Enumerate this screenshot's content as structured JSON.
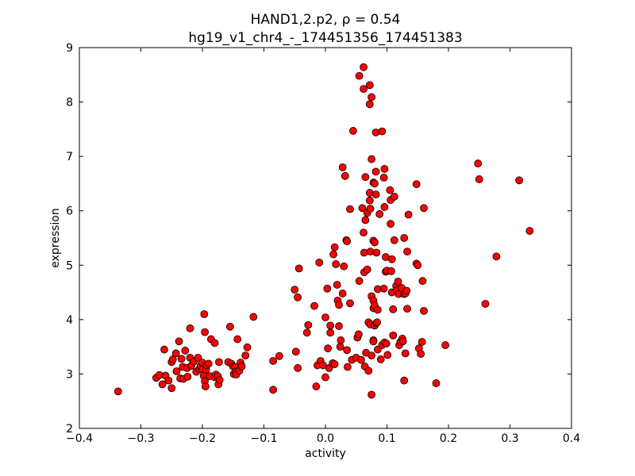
{
  "chart_data": {
    "type": "scatter",
    "title": "HAND1,2.p2, ρ = 0.54",
    "subtitle": "hg19_v1_chr4_-_174451356_174451383",
    "xlabel": "activity",
    "ylabel": "expression",
    "xlim": [
      -0.4,
      0.4
    ],
    "ylim": [
      2,
      9
    ],
    "xticks": [
      "−0.4",
      "−0.3",
      "−0.2",
      "−0.1",
      "0.0",
      "0.1",
      "0.2",
      "0.3",
      "0.4"
    ],
    "yticks": [
      "2",
      "3",
      "4",
      "5",
      "6",
      "7",
      "8",
      "9"
    ],
    "grid": false,
    "legend": "none",
    "marker_color": "#ff0000",
    "marker_edge_color": "#000000",
    "points": [
      [
        -0.337,
        2.68
      ],
      [
        -0.275,
        2.93
      ],
      [
        -0.27,
        2.98
      ],
      [
        -0.265,
        2.81
      ],
      [
        -0.262,
        3.45
      ],
      [
        -0.26,
        2.97
      ],
      [
        -0.255,
        2.88
      ],
      [
        -0.25,
        2.74
      ],
      [
        -0.25,
        3.22
      ],
      [
        -0.248,
        3.27
      ],
      [
        -0.243,
        3.38
      ],
      [
        -0.242,
        3.05
      ],
      [
        -0.238,
        3.6
      ],
      [
        -0.236,
        2.92
      ],
      [
        -0.234,
        3.28
      ],
      [
        -0.232,
        3.13
      ],
      [
        -0.231,
        2.91
      ],
      [
        -0.228,
        3.43
      ],
      [
        -0.225,
        3.11
      ],
      [
        -0.224,
        2.95
      ],
      [
        -0.22,
        3.84
      ],
      [
        -0.22,
        3.3
      ],
      [
        -0.218,
        3.15
      ],
      [
        -0.214,
        3.23
      ],
      [
        -0.21,
        3.04
      ],
      [
        -0.207,
        3.3
      ],
      [
        -0.205,
        3.09
      ],
      [
        -0.203,
        3.15
      ],
      [
        -0.2,
        3.21
      ],
      [
        -0.2,
        3.08
      ],
      [
        -0.198,
        2.97
      ],
      [
        -0.197,
        4.1
      ],
      [
        -0.196,
        3.77
      ],
      [
        -0.196,
        2.87
      ],
      [
        -0.195,
        2.77
      ],
      [
        -0.194,
        3.08
      ],
      [
        -0.193,
        3.16
      ],
      [
        -0.19,
        3.19
      ],
      [
        -0.188,
        2.96
      ],
      [
        -0.186,
        3.64
      ],
      [
        -0.18,
        3.57
      ],
      [
        -0.18,
        2.94
      ],
      [
        -0.178,
        2.99
      ],
      [
        -0.175,
        2.96
      ],
      [
        -0.174,
        2.81
      ],
      [
        -0.173,
        3.22
      ],
      [
        -0.172,
        2.89
      ],
      [
        -0.158,
        3.22
      ],
      [
        -0.155,
        3.87
      ],
      [
        -0.153,
        3.19
      ],
      [
        -0.15,
        3.14
      ],
      [
        -0.149,
        3.0
      ],
      [
        -0.147,
        3.13
      ],
      [
        -0.146,
        3.04
      ],
      [
        -0.145,
        2.99
      ],
      [
        -0.143,
        3.64
      ],
      [
        -0.14,
        3.06
      ],
      [
        -0.138,
        3.21
      ],
      [
        -0.136,
        3.14
      ],
      [
        -0.13,
        3.34
      ],
      [
        -0.127,
        3.49
      ],
      [
        -0.117,
        4.05
      ],
      [
        -0.085,
        3.24
      ],
      [
        -0.085,
        2.71
      ],
      [
        -0.075,
        3.33
      ],
      [
        -0.05,
        4.55
      ],
      [
        -0.048,
        3.41
      ],
      [
        -0.045,
        4.41
      ],
      [
        -0.045,
        3.11
      ],
      [
        -0.043,
        4.94
      ],
      [
        -0.03,
        3.76
      ],
      [
        -0.028,
        3.9
      ],
      [
        -0.018,
        4.25
      ],
      [
        -0.015,
        2.77
      ],
      [
        -0.013,
        3.16
      ],
      [
        -0.01,
        5.05
      ],
      [
        -0.008,
        3.24
      ],
      [
        -0.004,
        3.16
      ],
      [
        0.0,
        2.94
      ],
      [
        0.0,
        4.04
      ],
      [
        0.003,
        4.57
      ],
      [
        0.004,
        3.47
      ],
      [
        0.006,
        3.11
      ],
      [
        0.008,
        3.89
      ],
      [
        0.008,
        3.76
      ],
      [
        0.012,
        3.2
      ],
      [
        0.013,
        5.2
      ],
      [
        0.015,
        5.33
      ],
      [
        0.015,
        3.18
      ],
      [
        0.017,
        5.02
      ],
      [
        0.019,
        4.64
      ],
      [
        0.02,
        4.35
      ],
      [
        0.022,
        4.27
      ],
      [
        0.022,
        3.88
      ],
      [
        0.024,
        3.5
      ],
      [
        0.025,
        3.62
      ],
      [
        0.028,
        6.8
      ],
      [
        0.028,
        4.48
      ],
      [
        0.03,
        4.98
      ],
      [
        0.032,
        6.64
      ],
      [
        0.034,
        5.46
      ],
      [
        0.035,
        5.44
      ],
      [
        0.035,
        3.44
      ],
      [
        0.036,
        3.13
      ],
      [
        0.04,
        6.03
      ],
      [
        0.04,
        4.3
      ],
      [
        0.043,
        3.26
      ],
      [
        0.045,
        7.47
      ],
      [
        0.05,
        3.3
      ],
      [
        0.052,
        3.67
      ],
      [
        0.054,
        3.73
      ],
      [
        0.055,
        8.48
      ],
      [
        0.055,
        4.71
      ],
      [
        0.058,
        3.26
      ],
      [
        0.06,
        6.05
      ],
      [
        0.062,
        8.64
      ],
      [
        0.062,
        8.24
      ],
      [
        0.062,
        5.6
      ],
      [
        0.063,
        5.23
      ],
      [
        0.063,
        4.87
      ],
      [
        0.064,
        3.14
      ],
      [
        0.065,
        6.62
      ],
      [
        0.065,
        5.83
      ],
      [
        0.066,
        3.39
      ],
      [
        0.068,
        5.96
      ],
      [
        0.068,
        4.92
      ],
      [
        0.07,
        3.95
      ],
      [
        0.07,
        3.06
      ],
      [
        0.072,
        8.31
      ],
      [
        0.072,
        7.96
      ],
      [
        0.072,
        6.33
      ],
      [
        0.072,
        6.19
      ],
      [
        0.073,
        6.04
      ],
      [
        0.073,
        5.25
      ],
      [
        0.073,
        3.91
      ],
      [
        0.075,
        8.09
      ],
      [
        0.075,
        6.95
      ],
      [
        0.075,
        4.43
      ],
      [
        0.075,
        3.34
      ],
      [
        0.075,
        2.62
      ],
      [
        0.078,
        6.52
      ],
      [
        0.078,
        5.45
      ],
      [
        0.078,
        4.35
      ],
      [
        0.078,
        4.21
      ],
      [
        0.078,
        3.62
      ],
      [
        0.078,
        3.6
      ],
      [
        0.08,
        6.5
      ],
      [
        0.08,
        5.42
      ],
      [
        0.08,
        4.26
      ],
      [
        0.08,
        3.89
      ],
      [
        0.082,
        7.44
      ],
      [
        0.082,
        6.72
      ],
      [
        0.082,
        6.3
      ],
      [
        0.083,
        5.23
      ],
      [
        0.083,
        3.94
      ],
      [
        0.084,
        3.95
      ],
      [
        0.085,
        4.56
      ],
      [
        0.085,
        4.18
      ],
      [
        0.085,
        3.45
      ],
      [
        0.088,
        5.94
      ],
      [
        0.09,
        3.27
      ],
      [
        0.092,
        7.46
      ],
      [
        0.092,
        3.53
      ],
      [
        0.095,
        4.57
      ],
      [
        0.095,
        6.61
      ],
      [
        0.096,
        6.77
      ],
      [
        0.096,
        6.07
      ],
      [
        0.096,
        3.58
      ],
      [
        0.098,
        5.15
      ],
      [
        0.098,
        4.88
      ],
      [
        0.099,
        3.56
      ],
      [
        0.1,
        4.9
      ],
      [
        0.101,
        3.35
      ],
      [
        0.105,
        6.38
      ],
      [
        0.106,
        6.2
      ],
      [
        0.106,
        5.76
      ],
      [
        0.107,
        4.89
      ],
      [
        0.108,
        5.11
      ],
      [
        0.108,
        4.5
      ],
      [
        0.11,
        4.19
      ],
      [
        0.11,
        3.71
      ],
      [
        0.112,
        6.26
      ],
      [
        0.112,
        5.46
      ],
      [
        0.115,
        4.62
      ],
      [
        0.116,
        4.54
      ],
      [
        0.118,
        4.7
      ],
      [
        0.119,
        4.47
      ],
      [
        0.12,
        3.53
      ],
      [
        0.122,
        3.59
      ],
      [
        0.124,
        4.58
      ],
      [
        0.125,
        3.65
      ],
      [
        0.126,
        3.6
      ],
      [
        0.128,
        5.5
      ],
      [
        0.128,
        4.47
      ],
      [
        0.128,
        2.88
      ],
      [
        0.13,
        3.38
      ],
      [
        0.13,
        4.48
      ],
      [
        0.132,
        4.53
      ],
      [
        0.133,
        5.25
      ],
      [
        0.133,
        4.2
      ],
      [
        0.135,
        5.93
      ],
      [
        0.148,
        6.49
      ],
      [
        0.148,
        5.03
      ],
      [
        0.15,
        5.0
      ],
      [
        0.152,
        3.47
      ],
      [
        0.155,
        3.37
      ],
      [
        0.157,
        3.59
      ],
      [
        0.158,
        4.71
      ],
      [
        0.16,
        6.05
      ],
      [
        0.16,
        4.16
      ],
      [
        0.18,
        2.83
      ],
      [
        0.195,
        3.53
      ],
      [
        0.248,
        6.87
      ],
      [
        0.25,
        6.58
      ],
      [
        0.26,
        4.29
      ],
      [
        0.278,
        5.16
      ],
      [
        0.315,
        6.56
      ],
      [
        0.332,
        5.63
      ]
    ]
  }
}
